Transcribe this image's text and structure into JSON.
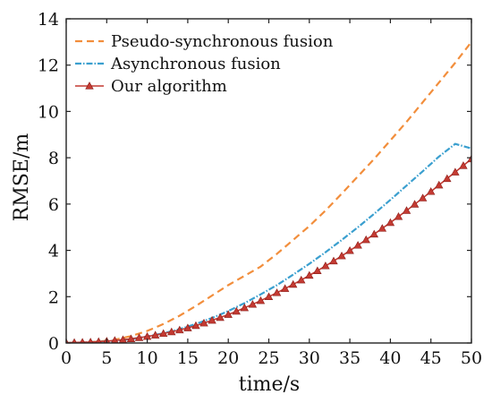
{
  "chart_data": {
    "type": "line",
    "title": "",
    "xlabel": "time/s",
    "ylabel": "RMSE/m",
    "xlim": [
      0,
      50
    ],
    "ylim": [
      0,
      14
    ],
    "xticks": [
      0,
      5,
      10,
      15,
      20,
      25,
      30,
      35,
      40,
      45,
      50
    ],
    "yticks": [
      0,
      2,
      4,
      6,
      8,
      10,
      12,
      14
    ],
    "grid": false,
    "legend": "top-left",
    "series": [
      {
        "name": "Pseudo-synchronous fusion",
        "color": "#f28e3c",
        "style": "dashed",
        "marker": "none",
        "x": [
          0,
          2,
          4,
          6,
          8,
          10,
          12,
          14,
          16,
          18,
          20,
          22,
          24,
          26,
          28,
          30,
          32,
          34,
          36,
          38,
          40,
          42,
          44,
          46,
          48,
          50
        ],
        "y": [
          0,
          0.02,
          0.06,
          0.14,
          0.3,
          0.52,
          0.82,
          1.18,
          1.6,
          2.05,
          2.5,
          2.9,
          3.3,
          3.85,
          4.45,
          5.05,
          5.72,
          6.45,
          7.2,
          7.95,
          8.75,
          9.55,
          10.4,
          11.25,
          12.1,
          13.0
        ]
      },
      {
        "name": "Asynchronous fusion",
        "color": "#3a9fcf",
        "style": "dash-dot",
        "marker": "none",
        "x": [
          0,
          2,
          4,
          6,
          8,
          10,
          12,
          14,
          16,
          18,
          20,
          22,
          24,
          26,
          28,
          30,
          32,
          34,
          36,
          38,
          40,
          42,
          44,
          46,
          48,
          50
        ],
        "y": [
          0,
          0.02,
          0.05,
          0.1,
          0.17,
          0.28,
          0.42,
          0.6,
          0.82,
          1.08,
          1.38,
          1.72,
          2.1,
          2.5,
          2.95,
          3.42,
          3.92,
          4.45,
          5.0,
          5.58,
          6.18,
          6.8,
          7.42,
          8.05,
          8.6,
          8.4
        ]
      },
      {
        "name": "Our algorithm",
        "color": "#c43a32",
        "style": "solid",
        "marker": "triangle",
        "x": [
          0,
          1,
          2,
          3,
          4,
          5,
          6,
          7,
          8,
          9,
          10,
          11,
          12,
          13,
          14,
          15,
          16,
          17,
          18,
          19,
          20,
          21,
          22,
          23,
          24,
          25,
          26,
          27,
          28,
          29,
          30,
          31,
          32,
          33,
          34,
          35,
          36,
          37,
          38,
          39,
          40,
          41,
          42,
          43,
          44,
          45,
          46,
          47,
          48,
          49,
          50
        ],
        "y": [
          0.01,
          0.02,
          0.03,
          0.04,
          0.06,
          0.08,
          0.11,
          0.14,
          0.18,
          0.23,
          0.28,
          0.34,
          0.41,
          0.48,
          0.56,
          0.65,
          0.75,
          0.86,
          0.98,
          1.1,
          1.23,
          1.37,
          1.52,
          1.67,
          1.83,
          2.0,
          2.17,
          2.35,
          2.53,
          2.72,
          2.92,
          3.12,
          3.33,
          3.54,
          3.76,
          3.99,
          4.22,
          4.46,
          4.7,
          4.95,
          5.2,
          5.46,
          5.72,
          5.99,
          6.26,
          6.54,
          6.82,
          7.1,
          7.38,
          7.66,
          7.95
        ]
      }
    ]
  }
}
